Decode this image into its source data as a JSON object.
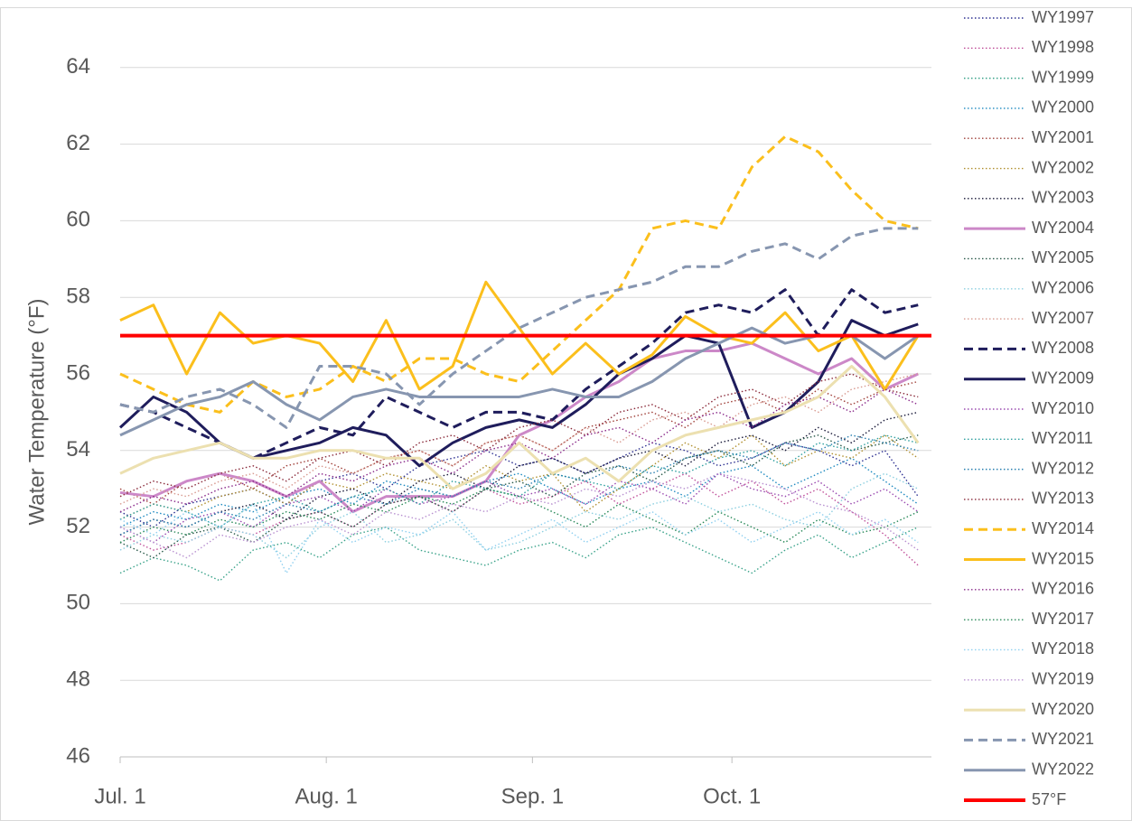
{
  "chart_data": {
    "type": "line",
    "y_label": "Water Temperature (°F)",
    "x": [
      0,
      5,
      10,
      15,
      20,
      25,
      30,
      35,
      40,
      45,
      50,
      55,
      60,
      65,
      70,
      75,
      80,
      85,
      90,
      95,
      100,
      105,
      110,
      115,
      120
    ],
    "xlim": [
      0,
      122
    ],
    "xticks": [
      {
        "value": 0,
        "label": "Jul. 1"
      },
      {
        "value": 31,
        "label": "Aug. 1"
      },
      {
        "value": 62,
        "label": "Sep. 1"
      },
      {
        "value": 92,
        "label": "Oct. 1"
      }
    ],
    "ylim": [
      46,
      65
    ],
    "yticks": [
      46,
      48,
      50,
      52,
      54,
      56,
      58,
      60,
      62,
      64
    ],
    "grid": true,
    "legend": "right",
    "series": [
      {
        "name": "WY1997",
        "color": "#2e3192",
        "style": "dotted",
        "values": [
          52.4,
          52.0,
          52.6,
          52.8,
          53.0,
          52.6,
          53.2,
          53.4,
          53.0,
          53.6,
          53.8,
          54.0,
          53.6,
          53.8,
          53.4,
          53.8,
          54.2,
          54.0,
          53.6,
          53.8,
          54.2,
          54.0,
          53.6,
          54.0,
          52.8
        ]
      },
      {
        "name": "WY1998",
        "color": "#c0509a",
        "style": "dotted",
        "values": [
          51.8,
          51.4,
          51.6,
          52.0,
          51.8,
          52.2,
          52.4,
          52.0,
          52.6,
          52.8,
          52.4,
          53.0,
          52.6,
          52.8,
          53.2,
          52.6,
          53.0,
          53.4,
          52.8,
          53.2,
          52.6,
          53.0,
          52.4,
          51.8,
          51.0
        ]
      },
      {
        "name": "WY1999",
        "color": "#3aa38a",
        "style": "dotted",
        "values": [
          50.8,
          51.2,
          51.0,
          50.6,
          51.4,
          51.6,
          51.2,
          51.8,
          52.0,
          51.4,
          51.2,
          51.0,
          51.4,
          51.6,
          51.2,
          51.8,
          52.0,
          51.6,
          51.2,
          50.8,
          51.4,
          51.8,
          51.2,
          51.6,
          52.0
        ]
      },
      {
        "name": "WY2000",
        "color": "#1f8ac0",
        "style": "dotted",
        "values": [
          52.0,
          52.4,
          52.2,
          52.6,
          52.4,
          52.8,
          53.0,
          52.6,
          53.2,
          53.0,
          52.8,
          53.2,
          53.4,
          53.0,
          52.6,
          53.0,
          53.2,
          52.8,
          53.4,
          53.6,
          53.0,
          53.4,
          53.8,
          53.2,
          52.6
        ]
      },
      {
        "name": "WY2001",
        "color": "#a0403a",
        "style": "dotted",
        "values": [
          53.0,
          52.6,
          53.2,
          53.4,
          53.0,
          53.6,
          53.8,
          53.4,
          53.8,
          54.0,
          53.6,
          54.2,
          54.4,
          54.0,
          54.6,
          54.8,
          55.0,
          54.6,
          55.2,
          55.4,
          55.0,
          55.6,
          55.2,
          55.6,
          55.8
        ]
      },
      {
        "name": "WY2002",
        "color": "#b09030",
        "style": "dotted",
        "values": [
          52.2,
          52.6,
          52.4,
          52.8,
          53.0,
          52.6,
          53.2,
          53.0,
          53.4,
          53.2,
          53.0,
          53.6,
          53.2,
          53.4,
          52.4,
          53.0,
          53.6,
          54.2,
          53.8,
          54.4,
          53.6,
          54.0,
          53.8,
          54.4,
          53.8
        ]
      },
      {
        "name": "WY2003",
        "color": "#1a1a3a",
        "style": "dotted",
        "values": [
          51.8,
          52.2,
          52.0,
          52.4,
          52.6,
          52.2,
          52.8,
          53.0,
          52.6,
          53.2,
          53.4,
          53.0,
          53.6,
          53.8,
          53.4,
          53.8,
          54.0,
          53.6,
          54.2,
          54.4,
          54.0,
          54.6,
          54.2,
          54.8,
          55.0
        ]
      },
      {
        "name": "WY2004",
        "color": "#cc88c8",
        "style": "solid",
        "values": [
          52.9,
          52.8,
          53.2,
          53.4,
          53.2,
          52.8,
          53.2,
          52.4,
          52.8,
          52.8,
          52.8,
          53.2,
          54.4,
          54.8,
          55.4,
          55.8,
          56.4,
          56.6,
          56.6,
          56.8,
          56.4,
          56.0,
          56.4,
          55.6,
          56.0
        ]
      },
      {
        "name": "WY2005",
        "color": "#2a5a4a",
        "style": "dotted",
        "values": [
          51.6,
          51.2,
          51.8,
          52.0,
          51.6,
          52.2,
          52.4,
          52.0,
          52.6,
          52.8,
          52.4,
          53.0,
          53.2,
          52.8,
          53.4,
          53.6,
          53.2,
          53.8,
          54.0,
          53.6,
          54.2,
          54.4,
          54.0,
          54.2,
          54.4
        ]
      },
      {
        "name": "WY2006",
        "color": "#8ccfe0",
        "style": "dotted",
        "values": [
          51.4,
          51.8,
          51.6,
          52.0,
          51.8,
          51.2,
          52.0,
          52.4,
          51.6,
          51.8,
          52.2,
          51.4,
          51.6,
          52.0,
          52.4,
          52.2,
          52.6,
          52.8,
          52.4,
          52.6,
          52.2,
          52.0,
          53.0,
          53.4,
          53.0
        ]
      },
      {
        "name": "WY2007",
        "color": "#d89a90",
        "style": "dotted",
        "values": [
          52.6,
          53.0,
          52.8,
          53.2,
          53.4,
          53.0,
          53.6,
          53.4,
          53.8,
          54.0,
          53.6,
          54.2,
          54.4,
          54.0,
          54.6,
          54.2,
          54.8,
          55.0,
          54.6,
          55.2,
          55.4,
          55.0,
          55.6,
          55.8,
          56.0
        ]
      },
      {
        "name": "WY2008",
        "color": "#1f1d5c",
        "style": "dashed",
        "values": [
          55.2,
          55.0,
          54.6,
          54.2,
          53.8,
          54.2,
          54.6,
          54.4,
          55.4,
          55.0,
          54.6,
          55.0,
          55.0,
          54.8,
          55.6,
          56.2,
          56.8,
          57.6,
          57.8,
          57.6,
          58.2,
          57.0,
          58.2,
          57.6,
          57.8
        ]
      },
      {
        "name": "WY2009",
        "color": "#1f1d5c",
        "style": "solid",
        "values": [
          54.6,
          55.4,
          55.0,
          54.2,
          53.8,
          54.0,
          54.2,
          54.6,
          54.4,
          53.6,
          54.2,
          54.6,
          54.8,
          54.6,
          55.2,
          56.0,
          56.4,
          57.0,
          56.8,
          54.6,
          55.0,
          55.8,
          57.4,
          57.0,
          57.3
        ]
      },
      {
        "name": "WY2010",
        "color": "#9a4ab0",
        "style": "dotted",
        "values": [
          52.0,
          51.6,
          52.2,
          52.4,
          52.0,
          52.6,
          52.8,
          52.4,
          53.0,
          52.6,
          52.8,
          53.2,
          52.8,
          53.0,
          52.6,
          53.2,
          53.0,
          52.6,
          53.4,
          53.0,
          52.8,
          53.2,
          52.6,
          53.0,
          52.4
        ]
      },
      {
        "name": "WY2011",
        "color": "#30a0a0",
        "style": "dotted",
        "values": [
          52.2,
          52.6,
          52.4,
          52.0,
          52.6,
          52.8,
          52.4,
          52.8,
          53.0,
          52.6,
          53.2,
          53.0,
          52.8,
          53.4,
          53.2,
          53.0,
          53.6,
          53.4,
          53.8,
          54.0,
          53.6,
          54.2,
          54.0,
          54.4,
          54.2
        ]
      },
      {
        "name": "WY2012",
        "color": "#2a80b0",
        "style": "dotted",
        "values": [
          51.8,
          52.2,
          52.0,
          52.4,
          52.2,
          52.6,
          52.4,
          52.8,
          52.6,
          53.0,
          52.8,
          53.2,
          53.0,
          53.4,
          53.2,
          53.6,
          53.4,
          53.8,
          54.0,
          53.8,
          54.2,
          54.0,
          54.4,
          54.2,
          54.0
        ]
      },
      {
        "name": "WY2013",
        "color": "#8a2a3a",
        "style": "dotted",
        "values": [
          52.8,
          53.2,
          53.0,
          53.4,
          53.6,
          53.2,
          53.8,
          54.0,
          53.6,
          54.2,
          54.4,
          54.0,
          54.6,
          54.8,
          54.4,
          55.0,
          55.2,
          54.8,
          55.4,
          55.6,
          55.2,
          55.8,
          56.0,
          55.6,
          55.4
        ]
      },
      {
        "name": "WY2014",
        "color": "#fbbf1c",
        "style": "dashed",
        "values": [
          56.0,
          55.6,
          55.2,
          55.0,
          55.8,
          55.4,
          55.6,
          56.2,
          55.8,
          56.4,
          56.4,
          56.0,
          55.8,
          56.6,
          57.4,
          58.2,
          59.8,
          60.0,
          59.8,
          61.4,
          62.2,
          61.8,
          60.8,
          60.0,
          59.8
        ]
      },
      {
        "name": "WY2015",
        "color": "#fbbf1c",
        "style": "solid",
        "values": [
          57.4,
          57.8,
          56.0,
          57.6,
          56.8,
          57.0,
          56.8,
          55.8,
          57.4,
          55.6,
          56.2,
          58.4,
          57.2,
          56.0,
          56.8,
          56.0,
          56.5,
          57.5,
          57.0,
          56.8,
          57.6,
          56.6,
          57.0,
          55.6,
          57.0
        ]
      },
      {
        "name": "WY2016",
        "color": "#8a2a8a",
        "style": "dotted",
        "values": [
          52.4,
          52.8,
          52.6,
          53.0,
          53.2,
          52.8,
          53.4,
          53.2,
          53.6,
          53.8,
          53.4,
          54.0,
          54.2,
          53.8,
          54.4,
          54.6,
          54.2,
          54.8,
          55.0,
          54.6,
          55.2,
          55.4,
          55.0,
          55.6,
          55.2
        ]
      },
      {
        "name": "WY2017",
        "color": "#2a8a5a",
        "style": "dotted",
        "values": [
          51.6,
          52.0,
          51.8,
          52.2,
          52.0,
          52.4,
          52.2,
          52.6,
          52.4,
          52.8,
          52.6,
          53.0,
          52.8,
          52.4,
          52.0,
          52.6,
          52.2,
          51.8,
          52.4,
          52.0,
          51.6,
          52.2,
          51.8,
          52.0,
          52.4
        ]
      },
      {
        "name": "WY2018",
        "color": "#90d0f0",
        "style": "dotted",
        "values": [
          52.2,
          51.8,
          52.4,
          52.0,
          52.6,
          50.8,
          52.2,
          51.6,
          52.0,
          51.8,
          52.4,
          51.4,
          51.8,
          52.2,
          51.6,
          52.0,
          52.4,
          51.8,
          52.2,
          51.6,
          52.0,
          52.4,
          51.8,
          52.2,
          51.6
        ]
      },
      {
        "name": "WY2019",
        "color": "#b890d0",
        "style": "dotted",
        "values": [
          52.0,
          51.6,
          51.2,
          51.8,
          51.6,
          52.0,
          52.2,
          51.8,
          52.4,
          52.2,
          52.6,
          52.4,
          52.8,
          52.6,
          53.0,
          52.8,
          53.2,
          53.0,
          53.4,
          53.2,
          53.0,
          52.6,
          52.4,
          52.0,
          51.4
        ]
      },
      {
        "name": "WY2020",
        "color": "#ece0b0",
        "style": "solid",
        "values": [
          53.4,
          53.8,
          54.0,
          54.2,
          53.8,
          53.8,
          54.0,
          54.0,
          53.8,
          53.8,
          53.0,
          53.4,
          54.2,
          53.4,
          53.8,
          53.2,
          54.0,
          54.4,
          54.6,
          54.8,
          55.0,
          55.4,
          56.2,
          55.4,
          54.2
        ]
      },
      {
        "name": "WY2021",
        "color": "#8796b0",
        "style": "dashed",
        "values": [
          55.2,
          55.0,
          55.4,
          55.6,
          55.2,
          54.6,
          56.2,
          56.2,
          56.0,
          55.2,
          56.0,
          56.6,
          57.2,
          57.6,
          58.0,
          58.2,
          58.4,
          58.8,
          58.8,
          59.2,
          59.4,
          59.0,
          59.6,
          59.8,
          59.8
        ]
      },
      {
        "name": "WY2022",
        "color": "#8796b0",
        "style": "solid",
        "values": [
          54.4,
          54.8,
          55.2,
          55.4,
          55.8,
          55.2,
          54.8,
          55.4,
          55.6,
          55.4,
          55.4,
          55.4,
          55.4,
          55.6,
          55.4,
          55.4,
          55.8,
          56.4,
          56.8,
          57.2,
          56.8,
          57.0,
          57.0,
          56.4,
          57.0
        ]
      }
    ],
    "threshold": {
      "name": "57°F",
      "value": 57,
      "color": "#ff0000"
    }
  }
}
